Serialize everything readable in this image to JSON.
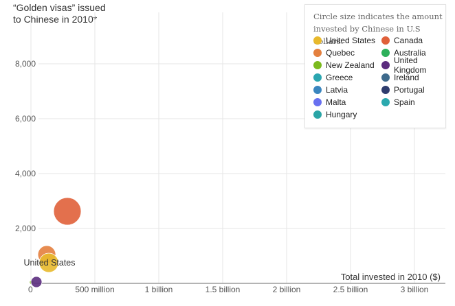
{
  "chart_data": {
    "type": "scatter",
    "subtype": "bubble",
    "title": "\"Golden visas\" issued to Chinese in 2010*",
    "title_lines": [
      "“Golden visas” issued",
      "to Chinese in 2010*"
    ],
    "xlabel": "Total invested in 2010 ($)",
    "ylabel": "“Golden visas” issued to Chinese in 2010*",
    "xlim": [
      0,
      3200000000
    ],
    "ylim": [
      0,
      9000
    ],
    "x_ticks": [
      {
        "value": 0,
        "label": "0"
      },
      {
        "value": 500000000,
        "label": "500 million"
      },
      {
        "value": 1000000000,
        "label": "1 billion"
      },
      {
        "value": 1500000000,
        "label": "1.5 billion"
      },
      {
        "value": 2000000000,
        "label": "2 billion"
      },
      {
        "value": 2500000000,
        "label": "2.5 billion"
      },
      {
        "value": 3000000000,
        "label": "3 billion"
      }
    ],
    "y_ticks": [
      {
        "value": 2000,
        "label": "2,000"
      },
      {
        "value": 4000,
        "label": "4,000"
      },
      {
        "value": 6000,
        "label": "6,000"
      },
      {
        "value": 8000,
        "label": "8,000"
      }
    ],
    "grid": true,
    "legend_position": "top-right",
    "legend_note": "Circle size indicates the amount invested by Chinese in U.S dollars.",
    "annotations": [
      {
        "text": "United States",
        "anchor": "United States"
      }
    ],
    "series": [
      {
        "name": "United States",
        "color": "#E8B92C",
        "x": 140000000,
        "y": 750,
        "r": 14
      },
      {
        "name": "Canada",
        "color": "#E0603A",
        "x": 285000000,
        "y": 2625,
        "r": 20
      },
      {
        "name": "Quebec",
        "color": "#E4803E",
        "x": 124000000,
        "y": 1050,
        "r": 13
      },
      {
        "name": "Australia",
        "color": "#2DB05A",
        "x": 0,
        "y": 0,
        "r": 0
      },
      {
        "name": "New Zealand",
        "color": "#7BBA1E",
        "x": 5000000,
        "y": 40,
        "r": 3
      },
      {
        "name": "United Kingdom",
        "color": "#5B2C7E",
        "x": 43000000,
        "y": 50,
        "r": 8
      },
      {
        "name": "Greece",
        "color": "#2BA6B0",
        "x": 0,
        "y": 0,
        "r": 0
      },
      {
        "name": "Ireland",
        "color": "#3E6A8C",
        "x": 0,
        "y": 0,
        "r": 0
      },
      {
        "name": "Latvia",
        "color": "#3A86BF",
        "x": 0,
        "y": 0,
        "r": 0
      },
      {
        "name": "Portugal",
        "color": "#2F3D6E",
        "x": 0,
        "y": 0,
        "r": 0
      },
      {
        "name": "Malta",
        "color": "#6870F0",
        "x": 0,
        "y": 0,
        "r": 0
      },
      {
        "name": "Spain",
        "color": "#2BA9AE",
        "x": 0,
        "y": 0,
        "r": 0
      },
      {
        "name": "Hungary",
        "color": "#2AA5A6",
        "x": 0,
        "y": 0,
        "r": 0
      }
    ]
  },
  "legend": {
    "note_line1": "Circle size indicates the amount",
    "note_line2": "invested by Chinese in U.S dollars.",
    "items": [
      {
        "label": "United States",
        "color": "#E8B92C"
      },
      {
        "label": "Canada",
        "color": "#E0603A"
      },
      {
        "label": "Quebec",
        "color": "#E4803E"
      },
      {
        "label": "Australia",
        "color": "#2DB05A"
      },
      {
        "label": "New Zealand",
        "color": "#7BBA1E"
      },
      {
        "label": "United Kingdom",
        "color": "#5B2C7E"
      },
      {
        "label": "Greece",
        "color": "#2BA6B0"
      },
      {
        "label": "Ireland",
        "color": "#3E6A8C"
      },
      {
        "label": "Latvia",
        "color": "#3A86BF"
      },
      {
        "label": "Portugal",
        "color": "#2F3D6E"
      },
      {
        "label": "Malta",
        "color": "#6870F0"
      },
      {
        "label": "Spain",
        "color": "#2BA9AE"
      },
      {
        "label": "Hungary",
        "color": "#2AA5A6"
      }
    ]
  }
}
